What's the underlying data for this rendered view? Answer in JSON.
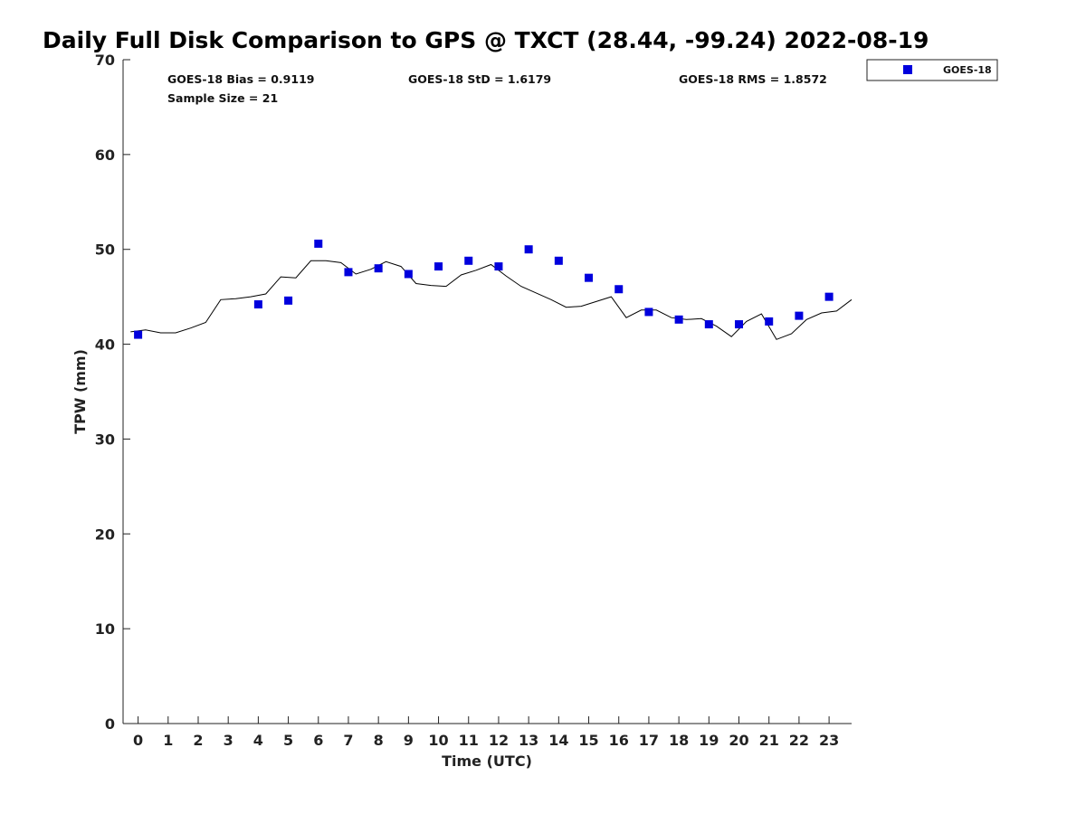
{
  "title": "Daily Full Disk Comparison to GPS @ TXCT (28.44, -99.24) 2022-08-19",
  "stats": {
    "bias": "GOES-18 Bias = 0.9119",
    "std": "GOES-18 StD = 1.6179",
    "rms": "GOES-18 RMS = 1.8572",
    "sample": "Sample Size = 21"
  },
  "colors": {
    "marker": "#0000dd",
    "line": "#000000",
    "axis": "#222222"
  },
  "chart_data": {
    "type": "scatter",
    "xlabel": "Time (UTC)",
    "ylabel": "TPW (mm)",
    "xlim": [
      -0.5,
      23.75
    ],
    "ylim": [
      0,
      70
    ],
    "xticks": [
      0,
      1,
      2,
      3,
      4,
      5,
      6,
      7,
      8,
      9,
      10,
      11,
      12,
      13,
      14,
      15,
      16,
      17,
      18,
      19,
      20,
      21,
      22,
      23
    ],
    "yticks": [
      0,
      10,
      20,
      30,
      40,
      50,
      60,
      70
    ],
    "grid": false,
    "legend_position": "top-right, outside plot",
    "series": [
      {
        "name": "GOES-18",
        "kind": "markers",
        "points": [
          [
            0,
            41.0
          ],
          [
            4,
            44.2
          ],
          [
            5,
            44.6
          ],
          [
            6,
            50.6
          ],
          [
            7,
            47.6
          ],
          [
            8,
            48.0
          ],
          [
            9,
            47.4
          ],
          [
            10,
            48.2
          ],
          [
            11,
            48.8
          ],
          [
            12,
            48.2
          ],
          [
            13,
            50.0
          ],
          [
            14,
            48.8
          ],
          [
            15,
            47.0
          ],
          [
            16,
            45.8
          ],
          [
            17,
            43.4
          ],
          [
            18,
            42.6
          ],
          [
            19,
            42.1
          ],
          [
            20,
            42.1
          ],
          [
            21,
            42.4
          ],
          [
            22,
            43.0
          ],
          [
            23,
            45.0
          ]
        ]
      },
      {
        "kind": "line",
        "points": [
          [
            -0.25,
            41.3
          ],
          [
            0.25,
            41.5
          ],
          [
            0.75,
            41.2
          ],
          [
            1.25,
            41.2
          ],
          [
            1.75,
            41.7
          ],
          [
            2.25,
            42.3
          ],
          [
            2.75,
            44.7
          ],
          [
            3.25,
            44.8
          ],
          [
            3.75,
            45.0
          ],
          [
            4.25,
            45.3
          ],
          [
            4.75,
            47.1
          ],
          [
            5.25,
            47.0
          ],
          [
            5.75,
            48.8
          ],
          [
            6.25,
            48.8
          ],
          [
            6.75,
            48.6
          ],
          [
            7.25,
            47.4
          ],
          [
            7.75,
            47.9
          ],
          [
            8.25,
            48.7
          ],
          [
            8.75,
            48.2
          ],
          [
            9.25,
            46.4
          ],
          [
            9.75,
            46.2
          ],
          [
            10.25,
            46.1
          ],
          [
            10.75,
            47.3
          ],
          [
            11.25,
            47.8
          ],
          [
            11.75,
            48.4
          ],
          [
            12.25,
            47.2
          ],
          [
            12.75,
            46.1
          ],
          [
            13.25,
            45.4
          ],
          [
            13.75,
            44.7
          ],
          [
            14.25,
            43.9
          ],
          [
            14.75,
            44.0
          ],
          [
            15.25,
            44.5
          ],
          [
            15.75,
            45.0
          ],
          [
            16.25,
            42.8
          ],
          [
            16.75,
            43.6
          ],
          [
            17.25,
            43.6
          ],
          [
            17.75,
            42.8
          ],
          [
            18.25,
            42.6
          ],
          [
            18.75,
            42.7
          ],
          [
            19.25,
            41.9
          ],
          [
            19.75,
            40.8
          ],
          [
            20.25,
            42.4
          ],
          [
            20.75,
            43.2
          ],
          [
            21.25,
            40.5
          ],
          [
            21.75,
            41.1
          ],
          [
            22.25,
            42.6
          ],
          [
            22.75,
            43.3
          ],
          [
            23.25,
            43.5
          ],
          [
            23.75,
            44.7
          ]
        ]
      }
    ]
  }
}
